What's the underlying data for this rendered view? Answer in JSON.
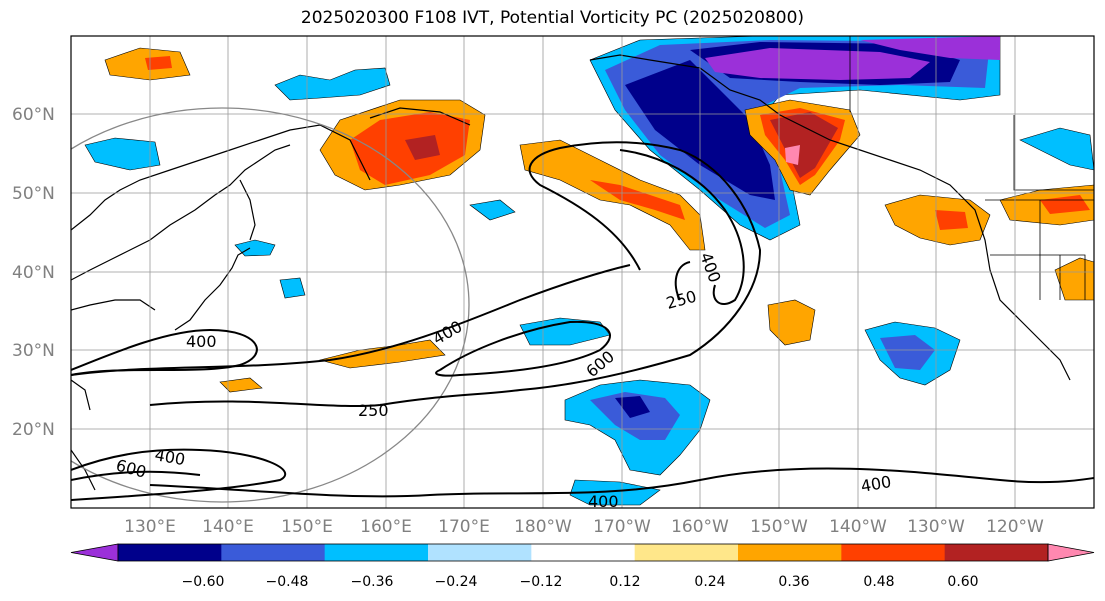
{
  "title": "2025020300 F108 IVT, Potential Vorticity PC (2025020800)",
  "map": {
    "lat_labels": [
      "60°N",
      "50°N",
      "40°N",
      "30°N",
      "20°N"
    ],
    "lon_labels": [
      "130°E",
      "140°E",
      "150°E",
      "160°E",
      "170°E",
      "180°W",
      "170°W",
      "160°W",
      "150°W",
      "140°W",
      "130°W",
      "120°W"
    ],
    "contour_labels": [
      "400",
      "400",
      "600",
      "250",
      "400",
      "250",
      "400",
      "600",
      "400",
      "400"
    ]
  },
  "colorbar": {
    "tick_labels": [
      "−0.60",
      "−0.48",
      "−0.36",
      "−0.24",
      "−0.12",
      "0.12",
      "0.24",
      "0.36",
      "0.48",
      "0.60"
    ],
    "colors": [
      "#9b30d9",
      "#00008b",
      "#3a5bd9",
      "#00bfff",
      "#b0e2ff",
      "#ffffff",
      "#ffe78a",
      "#ffa500",
      "#ff4000",
      "#b22222",
      "#ff88b0"
    ]
  }
}
